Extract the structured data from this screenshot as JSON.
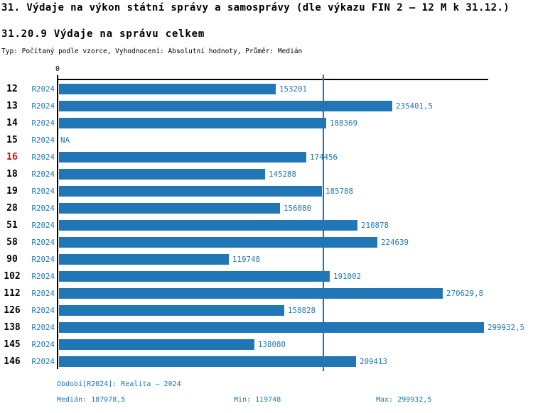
{
  "header": {
    "title": "31. Výdaje na výkon státní správy a samosprávy (dle výkazu FIN 2 – 12 M k 31.12.)",
    "subtitle": "31.20.9 Výdaje na správu celkem",
    "meta": "Typ: Počítaný podle vzorce, Vyhodnocení: Absolutní hodnoty, Průměr: Medián"
  },
  "chart_data": {
    "type": "bar",
    "orientation": "horizontal",
    "title": "31.20.9 Výdaje na správu celkem",
    "zero_label": "0",
    "series_name": "R2024",
    "categories": [
      "12",
      "13",
      "14",
      "15",
      "16",
      "18",
      "19",
      "28",
      "51",
      "58",
      "90",
      "102",
      "112",
      "126",
      "138",
      "145",
      "146"
    ],
    "values": [
      153201,
      235401.5,
      188369,
      null,
      174456,
      145288,
      185788,
      156080,
      210878,
      224639,
      119748,
      191002,
      270629.8,
      158828,
      299932.5,
      138080,
      209413
    ],
    "rows": [
      {
        "label": "12",
        "period": "R2024",
        "value": 153201,
        "display": "153201",
        "highlight": false
      },
      {
        "label": "13",
        "period": "R2024",
        "value": 235401.5,
        "display": "235401,5",
        "highlight": false
      },
      {
        "label": "14",
        "period": "R2024",
        "value": 188369,
        "display": "188369",
        "highlight": false
      },
      {
        "label": "15",
        "period": "R2024",
        "value": null,
        "display": "NA",
        "highlight": false
      },
      {
        "label": "16",
        "period": "R2024",
        "value": 174456,
        "display": "174456",
        "highlight": true
      },
      {
        "label": "18",
        "period": "R2024",
        "value": 145288,
        "display": "145288",
        "highlight": false
      },
      {
        "label": "19",
        "period": "R2024",
        "value": 185788,
        "display": "185788",
        "highlight": false
      },
      {
        "label": "28",
        "period": "R2024",
        "value": 156080,
        "display": "156080",
        "highlight": false
      },
      {
        "label": "51",
        "period": "R2024",
        "value": 210878,
        "display": "210878",
        "highlight": false
      },
      {
        "label": "58",
        "period": "R2024",
        "value": 224639,
        "display": "224639",
        "highlight": false
      },
      {
        "label": "90",
        "period": "R2024",
        "value": 119748,
        "display": "119748",
        "highlight": false
      },
      {
        "label": "102",
        "period": "R2024",
        "value": 191002,
        "display": "191002",
        "highlight": false
      },
      {
        "label": "112",
        "period": "R2024",
        "value": 270629.8,
        "display": "270629,8",
        "highlight": false
      },
      {
        "label": "126",
        "period": "R2024",
        "value": 158828,
        "display": "158828",
        "highlight": false
      },
      {
        "label": "138",
        "period": "R2024",
        "value": 299932.5,
        "display": "299932,5",
        "highlight": false
      },
      {
        "label": "145",
        "period": "R2024",
        "value": 138080,
        "display": "138080",
        "highlight": false
      },
      {
        "label": "146",
        "period": "R2024",
        "value": 209413,
        "display": "209413",
        "highlight": false
      }
    ],
    "median": 187078.5,
    "min": 119748,
    "max": 299932.5,
    "xlim": [
      0,
      303000
    ],
    "grid": false,
    "legend": "none",
    "colors": {
      "bar": "#2177b5",
      "value_text": "#2177b5",
      "median_line": "#2177b5",
      "highlight_label": "#cc1111",
      "label_text": "#000000"
    }
  },
  "footer": {
    "period": "Období[R2024]: Realita – 2024",
    "median": "Medián: 187078,5",
    "min": "Min: 119748",
    "max": "Max: 299932,5"
  }
}
